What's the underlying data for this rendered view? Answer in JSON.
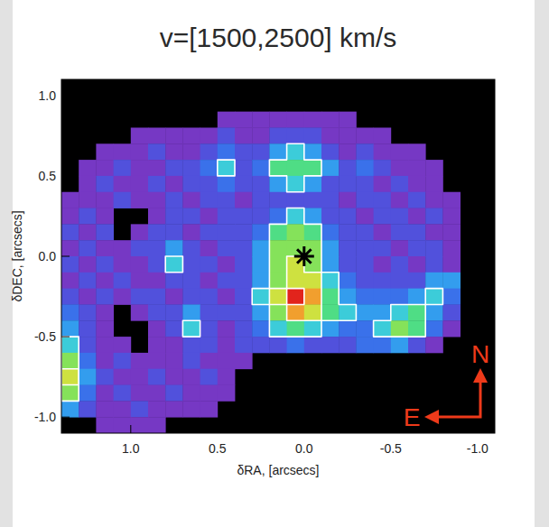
{
  "chart_data": {
    "type": "heatmap",
    "title": "v=[1500,2500] km/s",
    "x_label": "δRA, [arcsecs]",
    "y_label": "δDEC, [arcsecs]",
    "xlim": [
      1.4,
      -1.1
    ],
    "ylim": [
      -1.1,
      1.1
    ],
    "xticks": [
      {
        "value": 1,
        "label": "1.0"
      },
      {
        "value": 0.5,
        "label": "0.5"
      },
      {
        "value": 0,
        "label": "0.0"
      },
      {
        "value": -0.5,
        "label": "-0.5"
      },
      {
        "value": -1,
        "label": "-1.0"
      }
    ],
    "yticks": [
      {
        "value": 1,
        "label": "1.0"
      },
      {
        "value": 0.5,
        "label": "0.5"
      },
      {
        "value": 0,
        "label": "0.0"
      },
      {
        "value": -0.5,
        "label": "-0.5"
      },
      {
        "value": -1,
        "label": "-1.0"
      }
    ],
    "contour_levels": [
      5,
      8,
      10
    ],
    "star": {
      "x": 0,
      "y": 0
    },
    "compass": {
      "north": "N",
      "east": "E"
    },
    "cells": [
      [
        null,
        null,
        null,
        null,
        null,
        null,
        null,
        null,
        null,
        null,
        null,
        null,
        null,
        null,
        null,
        null,
        null,
        null,
        null,
        null,
        null,
        null,
        null,
        null,
        null
      ],
      [
        null,
        null,
        null,
        null,
        null,
        null,
        null,
        null,
        null,
        null,
        null,
        null,
        null,
        null,
        null,
        null,
        null,
        null,
        null,
        null,
        null,
        null,
        null,
        null,
        null
      ],
      [
        null,
        null,
        null,
        null,
        null,
        null,
        null,
        null,
        null,
        1,
        1,
        1,
        1,
        1,
        1,
        1,
        1,
        null,
        null,
        null,
        null,
        null,
        null,
        null,
        null
      ],
      [
        null,
        null,
        null,
        null,
        1,
        1,
        1,
        1,
        1,
        2,
        1,
        1,
        2,
        2,
        2,
        1,
        1,
        1,
        1,
        null,
        null,
        null,
        null,
        null,
        null
      ],
      [
        null,
        null,
        1,
        1,
        1,
        2,
        1,
        1,
        2,
        3,
        2,
        2,
        4,
        5,
        4,
        2,
        1,
        2,
        1,
        1,
        1,
        null,
        null,
        null,
        null
      ],
      [
        null,
        1,
        1,
        2,
        1,
        1,
        2,
        2,
        3,
        5,
        2,
        3,
        6,
        6,
        6,
        4,
        2,
        3,
        2,
        1,
        1,
        1,
        null,
        null,
        null
      ],
      [
        null,
        1,
        2,
        1,
        1,
        2,
        1,
        2,
        2,
        3,
        2,
        2,
        4,
        5,
        4,
        2,
        2,
        2,
        1,
        2,
        1,
        1,
        null,
        null,
        null
      ],
      [
        1,
        1,
        1,
        2,
        1,
        1,
        2,
        1,
        2,
        2,
        1,
        2,
        2,
        2,
        2,
        2,
        1,
        2,
        2,
        1,
        2,
        1,
        1,
        null,
        null
      ],
      [
        1,
        2,
        1,
        null,
        null,
        1,
        2,
        2,
        1,
        2,
        2,
        2,
        3,
        5,
        4,
        2,
        2,
        1,
        2,
        2,
        1,
        2,
        1,
        null,
        null
      ],
      [
        2,
        1,
        2,
        null,
        1,
        2,
        2,
        1,
        2,
        2,
        2,
        3,
        6,
        7,
        6,
        3,
        2,
        2,
        1,
        2,
        2,
        1,
        1,
        null,
        null
      ],
      [
        1,
        2,
        1,
        1,
        2,
        2,
        4,
        2,
        1,
        2,
        2,
        4,
        7,
        7,
        7,
        4,
        2,
        2,
        2,
        1,
        2,
        2,
        1,
        null,
        null
      ],
      [
        2,
        1,
        2,
        1,
        1,
        2,
        5,
        2,
        2,
        1,
        2,
        4,
        7,
        8,
        7,
        4,
        2,
        2,
        1,
        2,
        1,
        2,
        1,
        null,
        null
      ],
      [
        1,
        2,
        1,
        2,
        1,
        1,
        2,
        2,
        1,
        2,
        2,
        4,
        7,
        8,
        8,
        5,
        3,
        2,
        2,
        2,
        2,
        4,
        4,
        null,
        null
      ],
      [
        2,
        1,
        2,
        1,
        2,
        2,
        1,
        2,
        2,
        1,
        2,
        5,
        8,
        10,
        9,
        6,
        4,
        3,
        3,
        3,
        4,
        5,
        3,
        null,
        null
      ],
      [
        3,
        2,
        1,
        null,
        1,
        2,
        2,
        4,
        2,
        2,
        2,
        4,
        7,
        9,
        8,
        6,
        5,
        4,
        4,
        5,
        6,
        4,
        2,
        null,
        null
      ],
      [
        4,
        2,
        1,
        null,
        null,
        1,
        2,
        5,
        2,
        1,
        2,
        3,
        5,
        6,
        5,
        4,
        3,
        3,
        5,
        7,
        6,
        3,
        1,
        null,
        null
      ],
      [
        5,
        2,
        1,
        1,
        null,
        1,
        1,
        2,
        2,
        1,
        2,
        2,
        2,
        3,
        2,
        2,
        2,
        3,
        3,
        4,
        2,
        1,
        null,
        null,
        null
      ],
      [
        7,
        3,
        1,
        2,
        1,
        1,
        1,
        2,
        1,
        1,
        1,
        null,
        null,
        null,
        null,
        null,
        null,
        null,
        null,
        null,
        null,
        null,
        null,
        null,
        null
      ],
      [
        8,
        4,
        2,
        1,
        1,
        2,
        1,
        1,
        2,
        1,
        null,
        null,
        null,
        null,
        null,
        null,
        null,
        null,
        null,
        null,
        null,
        null,
        null,
        null,
        null
      ],
      [
        7,
        3,
        1,
        2,
        1,
        1,
        2,
        1,
        1,
        1,
        null,
        null,
        null,
        null,
        null,
        null,
        null,
        null,
        null,
        null,
        null,
        null,
        null,
        null,
        null
      ],
      [
        4,
        2,
        1,
        1,
        2,
        1,
        1,
        1,
        1,
        null,
        null,
        null,
        null,
        null,
        null,
        null,
        null,
        null,
        null,
        null,
        null,
        null,
        null,
        null,
        null
      ],
      [
        null,
        null,
        1,
        1,
        1,
        1,
        null,
        null,
        null,
        null,
        null,
        null,
        null,
        null,
        null,
        null,
        null,
        null,
        null,
        null,
        null,
        null,
        null,
        null,
        null
      ]
    ]
  }
}
